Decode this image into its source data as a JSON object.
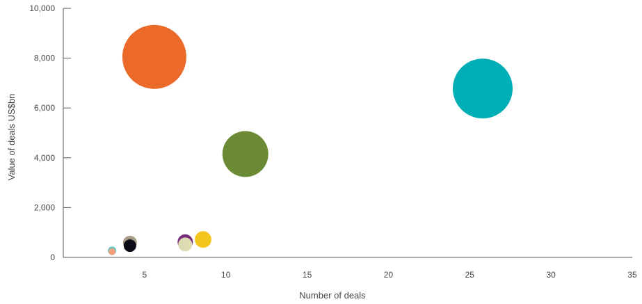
{
  "chart_data": {
    "type": "scatter",
    "variant": "bubble",
    "title": "",
    "xlabel": "Number of deals",
    "ylabel": "Value of deals US$bn",
    "xlim": [
      0,
      35
    ],
    "ylim": [
      0,
      10000
    ],
    "x_ticks": [
      5,
      10,
      15,
      20,
      25,
      30,
      35
    ],
    "x_tick_labels": [
      "5",
      "10",
      "15",
      "20",
      "25",
      "30",
      "35"
    ],
    "y_ticks": [
      0,
      2000,
      4000,
      6000,
      8000,
      10000
    ],
    "y_tick_labels": [
      "0",
      "2,000",
      "4,000",
      "6,000",
      "8,000",
      "10,000"
    ],
    "grid": false,
    "legend": false,
    "points": [
      {
        "x": 5.6,
        "y": 8050,
        "size": 46,
        "color": "#eb6a2a"
      },
      {
        "x": 25.8,
        "y": 6780,
        "size": 43,
        "color": "#00aeb5"
      },
      {
        "x": 11.2,
        "y": 4150,
        "size": 33,
        "color": "#6b8a35"
      },
      {
        "x": 8.6,
        "y": 720,
        "size": 12,
        "color": "#f2c61f"
      },
      {
        "x": 7.5,
        "y": 620,
        "size": 11,
        "color": "#7b2d7d"
      },
      {
        "x": 7.5,
        "y": 520,
        "size": 10,
        "color": "#dcdcb0"
      },
      {
        "x": 4.1,
        "y": 590,
        "size": 10,
        "color": "#a69a87"
      },
      {
        "x": 4.1,
        "y": 470,
        "size": 9,
        "color": "#0c0c18"
      },
      {
        "x": 3.0,
        "y": 270,
        "size": 6,
        "color": "#5bc6c9"
      },
      {
        "x": 3.0,
        "y": 230,
        "size": 5,
        "color": "#f0a07a"
      }
    ]
  }
}
